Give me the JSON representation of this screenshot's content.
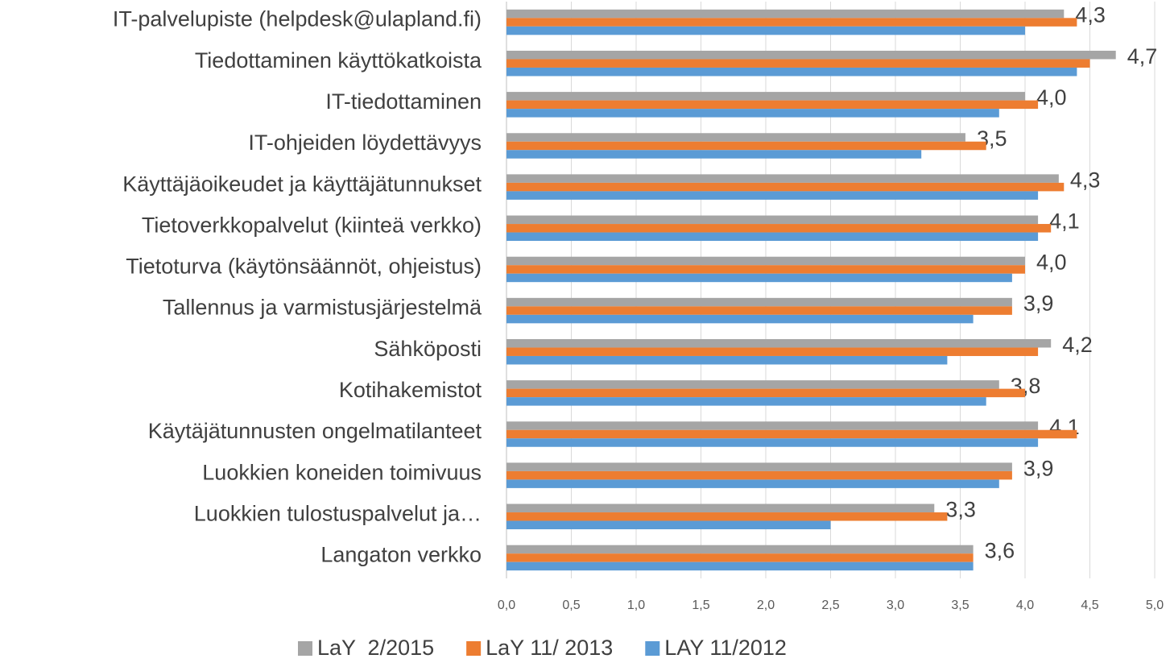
{
  "chart_data": {
    "type": "bar",
    "orientation": "horizontal",
    "categories": [
      "IT-palvelupiste (helpdesk@ulapland.fi)",
      "Tiedottaminen  käyttökatkoista",
      "IT-tiedottaminen",
      "IT-ohjeiden löydettävyys",
      "Käyttäjäoikeudet ja käyttäjätunnukset",
      "Tietoverkkopalvelut (kiinteä verkko)",
      "Tietoturva (käytönsäännöt, ohjeistus)",
      "Tallennus ja varmistusjärjestelmä",
      "Sähköposti",
      "Kotihakemistot",
      "Käytäjätunnusten ongelmatilanteet",
      "Luokkien koneiden toimivuus",
      "Luokkien tulostuspalvelut ja…",
      "Langaton verkko"
    ],
    "series": [
      {
        "name": "LaY  2/2015",
        "color": "#a5a5a5",
        "values": [
          4.3,
          4.7,
          4.0,
          3.54,
          4.26,
          4.1,
          4.0,
          3.9,
          4.2,
          3.8,
          4.1,
          3.9,
          3.3,
          3.6
        ],
        "value_labels": [
          "4,3",
          "4,7",
          "4,0",
          "3,5",
          "4,3",
          "4,1",
          "4,0",
          "3,9",
          "4,2",
          "3,8",
          "4,1",
          "3,9",
          "3,3",
          "3,6"
        ]
      },
      {
        "name": "LaY 11/ 2013",
        "color": "#ed7d31",
        "values": [
          4.4,
          4.5,
          4.1,
          3.7,
          4.3,
          4.2,
          4.0,
          3.9,
          4.1,
          4.0,
          4.4,
          3.9,
          3.4,
          3.6
        ]
      },
      {
        "name": "LAY 11/2012",
        "color": "#5b9bd5",
        "values": [
          4.0,
          4.4,
          3.8,
          3.2,
          4.1,
          4.1,
          3.9,
          3.6,
          3.4,
          3.7,
          4.1,
          3.8,
          2.5,
          3.6
        ]
      }
    ],
    "xlim": [
      0,
      5
    ],
    "xticks": [
      {
        "value": 0,
        "label": "0,0"
      },
      {
        "value": 0.5,
        "label": "0,5"
      },
      {
        "value": 1,
        "label": "1,0"
      },
      {
        "value": 1.5,
        "label": "1,5"
      },
      {
        "value": 2,
        "label": "2,0"
      },
      {
        "value": 2.5,
        "label": "2,5"
      },
      {
        "value": 3,
        "label": "3,0"
      },
      {
        "value": 3.5,
        "label": "3,5"
      },
      {
        "value": 4,
        "label": "4,0"
      },
      {
        "value": 4.5,
        "label": "4,5"
      },
      {
        "value": 5,
        "label": "5,0"
      }
    ],
    "grid": true,
    "legend": "bottom"
  }
}
